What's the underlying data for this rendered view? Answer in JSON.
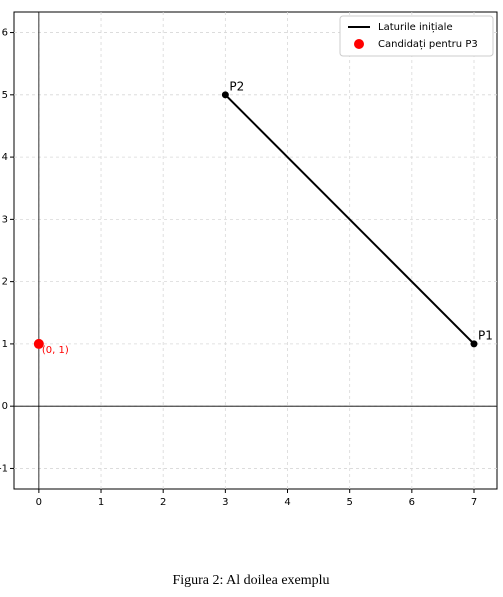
{
  "chart_data": {
    "type": "line",
    "series": [
      {
        "name": "Laturile inițiale",
        "type": "line",
        "color": "#000000",
        "x": [
          3,
          7
        ],
        "y": [
          5,
          1
        ]
      },
      {
        "name": "Candidați pentru P3",
        "type": "scatter",
        "color": "#ff0000",
        "x": [
          0
        ],
        "y": [
          1
        ],
        "value_labels": [
          "(0, 1)"
        ]
      }
    ],
    "points": [
      {
        "label": "P1",
        "x": 7,
        "y": 1,
        "color": "#000000"
      },
      {
        "label": "P2",
        "x": 3,
        "y": 5,
        "color": "#000000"
      }
    ],
    "xlim": [
      -0.4,
      7.37
    ],
    "ylim": [
      -1.33,
      6.33
    ],
    "xticks": [
      0,
      1,
      2,
      3,
      4,
      5,
      6,
      7
    ],
    "yticks": [
      -1,
      0,
      1,
      2,
      3,
      4,
      5,
      6
    ],
    "grid": true,
    "legend": "upper right"
  },
  "caption": "Figura 2: Al doilea exemplu"
}
